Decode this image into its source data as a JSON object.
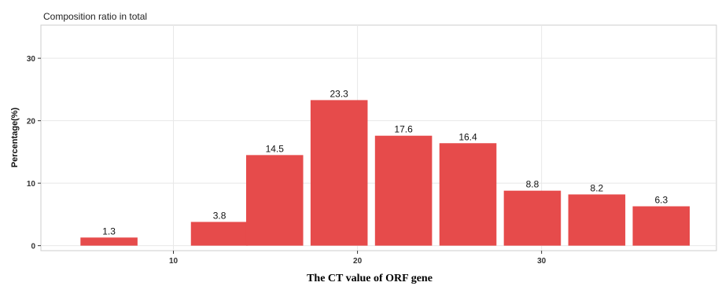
{
  "chart_data": {
    "type": "bar",
    "title": "Composition ratio in total",
    "xlabel": "The CT value of ORF gene",
    "ylabel": "Percentage(%)",
    "x": [
      6.5,
      12.5,
      15.5,
      19,
      22.5,
      26,
      29.5,
      33,
      36.5
    ],
    "values": [
      1.3,
      3.8,
      14.5,
      23.3,
      17.6,
      16.4,
      8.8,
      8.2,
      6.3
    ],
    "data_labels": [
      "1.3",
      "3.8",
      "14.5",
      "23.3",
      "17.6",
      "16.4",
      "8.8",
      "8.2",
      "6.3"
    ],
    "bar_width": 3.1,
    "xlim": [
      2.8,
      39.5
    ],
    "ylim": [
      -0.8,
      35.3
    ],
    "xticks": [
      10,
      20,
      30
    ],
    "xtick_labels": [
      "10",
      "20",
      "30"
    ],
    "yticks": [
      0,
      10,
      20,
      30
    ],
    "ytick_labels": [
      "0",
      "10",
      "20",
      "30"
    ],
    "grid": true,
    "bar_color": "#e64b4b"
  }
}
